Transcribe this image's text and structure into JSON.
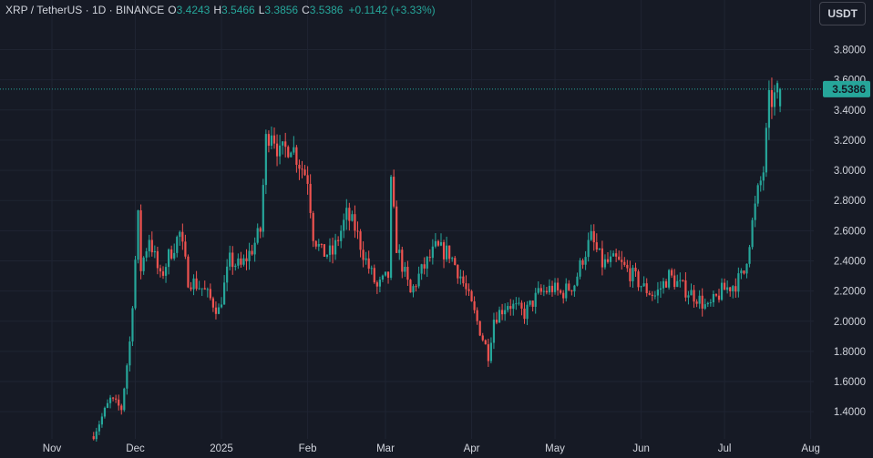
{
  "header": {
    "symbol": "XRP / TetherUS",
    "interval": "1D",
    "exchange": "BINANCE",
    "open_label": "O",
    "open": "3.4243",
    "high_label": "H",
    "high": "3.5466",
    "low_label": "L",
    "low": "3.3856",
    "close_label": "C",
    "close": "3.5386",
    "change": "+0.1142 (+3.33%)",
    "currency_button": "USDT"
  },
  "colors": {
    "up": "#26a69a",
    "down": "#ef5350",
    "background": "#161a25",
    "grid": "#1f2432"
  },
  "chart_data": {
    "type": "candlestick",
    "title": "",
    "y_axis": {
      "ticks": [
        "1.4000",
        "1.6000",
        "1.8000",
        "2.0000",
        "2.2000",
        "2.4000",
        "2.6000",
        "2.8000",
        "3.0000",
        "3.2000",
        "3.4000",
        "3.6000",
        "3.8000"
      ],
      "ylim": [
        1.22,
        3.96
      ],
      "side": "right"
    },
    "x_axis": {
      "ticks": [
        "Nov",
        "Dec",
        "2025",
        "Feb",
        "Mar",
        "Apr",
        "May",
        "Jun",
        "Jul",
        "Aug"
      ]
    },
    "last_price": "3.5386",
    "anchors": [
      [
        "2024-11-16",
        1.25
      ],
      [
        "2024-11-22",
        1.48
      ],
      [
        "2024-11-26",
        1.42
      ],
      [
        "2024-11-29",
        1.86
      ],
      [
        "2024-12-02",
        2.68
      ],
      [
        "2024-12-03",
        2.35
      ],
      [
        "2024-12-06",
        2.56
      ],
      [
        "2024-12-10",
        2.28
      ],
      [
        "2024-12-13",
        2.43
      ],
      [
        "2024-12-17",
        2.58
      ],
      [
        "2024-12-20",
        2.28
      ],
      [
        "2024-12-25",
        2.22
      ],
      [
        "2024-12-31",
        2.07
      ],
      [
        "2025-01-04",
        2.4
      ],
      [
        "2025-01-08",
        2.36
      ],
      [
        "2025-01-12",
        2.48
      ],
      [
        "2025-01-15",
        2.6
      ],
      [
        "2025-01-17",
        3.2
      ],
      [
        "2025-01-19",
        3.28
      ],
      [
        "2025-01-22",
        3.1
      ],
      [
        "2025-01-26",
        3.18
      ],
      [
        "2025-01-29",
        3.05
      ],
      [
        "2025-02-01",
        2.95
      ],
      [
        "2025-02-03",
        2.58
      ],
      [
        "2025-02-06",
        2.45
      ],
      [
        "2025-02-10",
        2.45
      ],
      [
        "2025-02-15",
        2.7
      ],
      [
        "2025-02-18",
        2.62
      ],
      [
        "2025-02-22",
        2.4
      ],
      [
        "2025-02-26",
        2.22
      ],
      [
        "2025-03-02",
        2.3
      ],
      [
        "2025-03-03",
        2.9
      ],
      [
        "2025-03-05",
        2.5
      ],
      [
        "2025-03-10",
        2.18
      ],
      [
        "2025-03-13",
        2.3
      ],
      [
        "2025-03-19",
        2.48
      ],
      [
        "2025-03-24",
        2.45
      ],
      [
        "2025-03-28",
        2.3
      ],
      [
        "2025-04-02",
        2.05
      ],
      [
        "2025-04-07",
        1.78
      ],
      [
        "2025-04-09",
        2.02
      ],
      [
        "2025-04-14",
        2.12
      ],
      [
        "2025-04-20",
        2.05
      ],
      [
        "2025-04-25",
        2.18
      ],
      [
        "2025-04-30",
        2.22
      ],
      [
        "2025-05-03",
        2.18
      ],
      [
        "2025-05-08",
        2.25
      ],
      [
        "2025-05-11",
        2.42
      ],
      [
        "2025-05-14",
        2.55
      ],
      [
        "2025-05-18",
        2.38
      ],
      [
        "2025-05-23",
        2.4
      ],
      [
        "2025-05-28",
        2.32
      ],
      [
        "2025-06-02",
        2.22
      ],
      [
        "2025-06-06",
        2.17
      ],
      [
        "2025-06-11",
        2.3
      ],
      [
        "2025-06-16",
        2.22
      ],
      [
        "2025-06-21",
        2.16
      ],
      [
        "2025-06-25",
        2.08
      ],
      [
        "2025-06-30",
        2.2
      ],
      [
        "2025-07-05",
        2.25
      ],
      [
        "2025-07-08",
        2.32
      ],
      [
        "2025-07-11",
        2.65
      ],
      [
        "2025-07-13",
        2.85
      ],
      [
        "2025-07-15",
        3.0
      ],
      [
        "2025-07-17",
        3.45
      ],
      [
        "2025-07-19",
        3.48
      ],
      [
        "2025-07-21",
        3.5386
      ]
    ],
    "last_bar": {
      "open": 3.4243,
      "high": 3.5466,
      "low": 3.3856,
      "close": 3.5386
    }
  }
}
